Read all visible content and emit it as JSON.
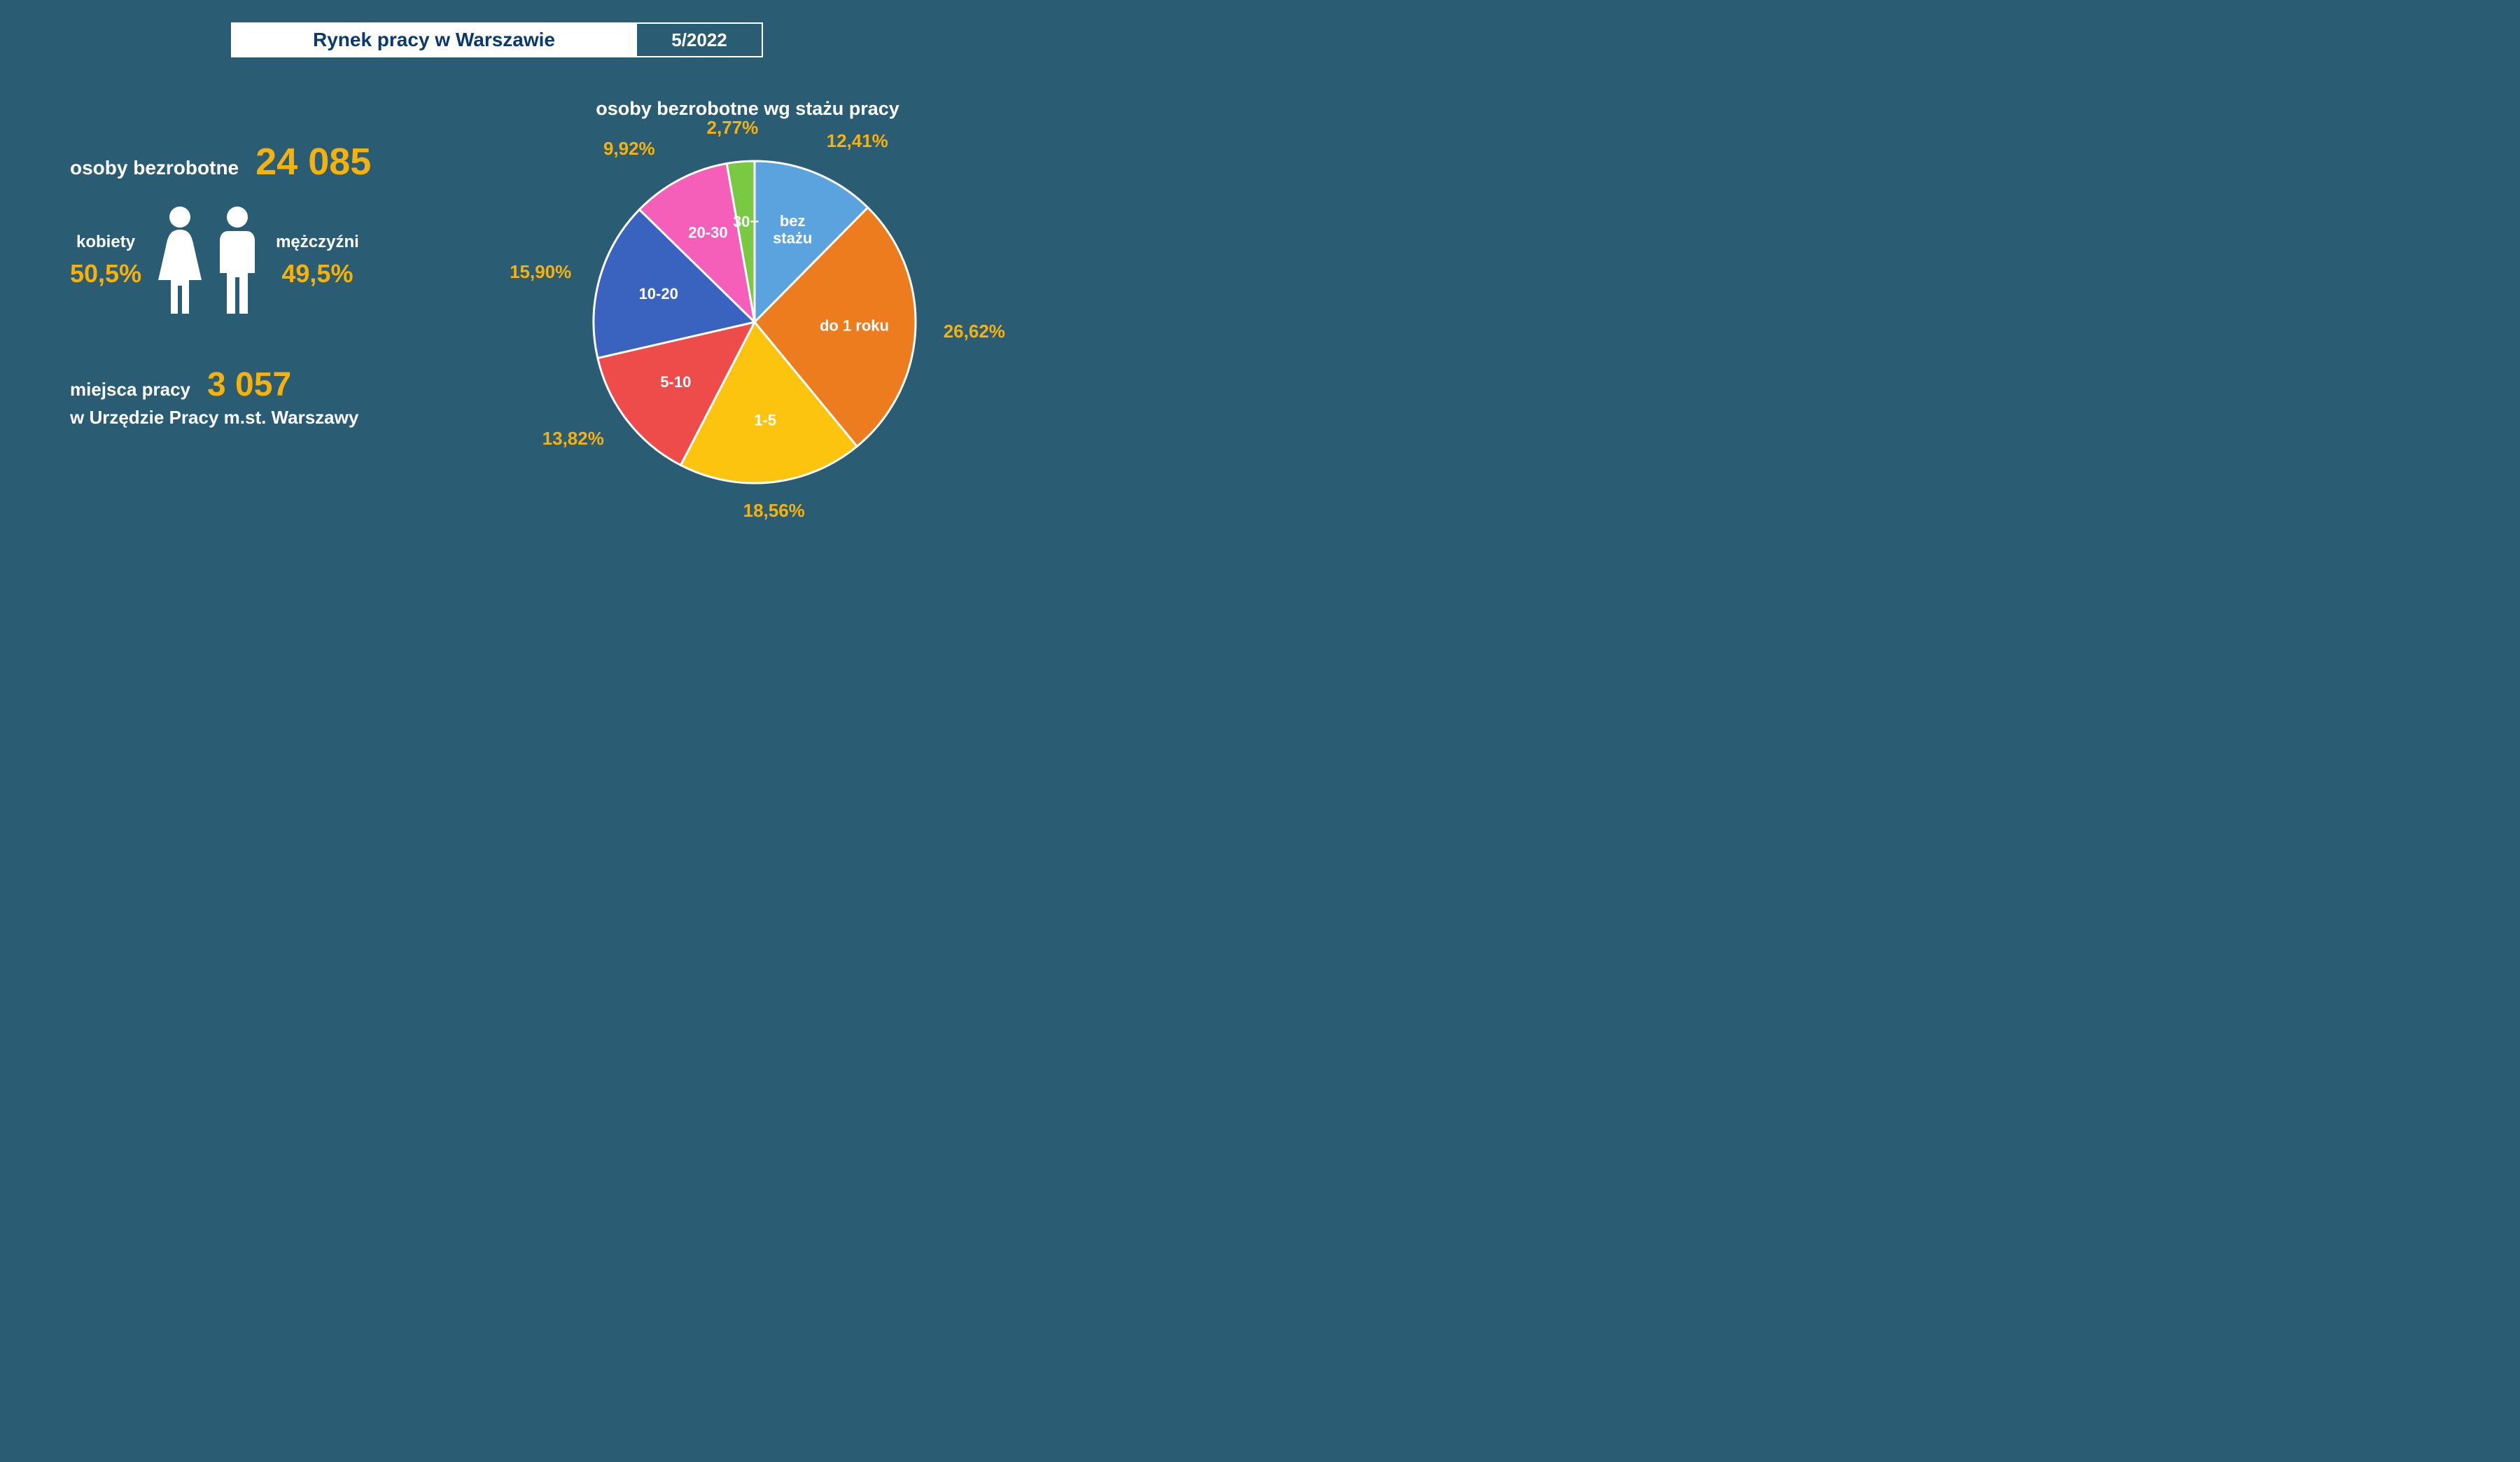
{
  "header": {
    "title": "Rynek pracy w Warszawie",
    "date": "5/2022"
  },
  "colors": {
    "background": "#2a5c74",
    "accent": "#f6b20c",
    "text_light": "#ffffff",
    "title_dark": "#0a3a6b"
  },
  "typography": {
    "font_family": "Arial",
    "title_size_pt": 28,
    "label_size_pt": 24,
    "big_number_size_pt": 54,
    "pct_size_pt": 36
  },
  "left": {
    "unemployed_label": "osoby bezrobotne",
    "unemployed_value": "24 085",
    "women_label": "kobiety",
    "women_pct": "50,5%",
    "men_label": "mężczyźni",
    "men_pct": "49,5%",
    "jobs_label": "miejsca pracy",
    "jobs_value": "3 057",
    "jobs_sub": "w Urzędzie Pracy m.st. Warszawy",
    "icon_color": "#ffffff"
  },
  "pie": {
    "title": "osoby bezrobotne wg stażu pracy",
    "type": "pie",
    "radius": 230,
    "stroke": "#ffffff",
    "stroke_width": 3,
    "start_angle_deg": 0,
    "slice_label_color": "#ffffff",
    "slice_label_fontsize": 22,
    "pct_label_color": "#f6b20c",
    "pct_label_fontsize": 26,
    "slices": [
      {
        "label": "bez stażu",
        "value": 12.41,
        "pct": "12,41%",
        "color": "#5aa3de"
      },
      {
        "label": "do 1 roku",
        "value": 26.62,
        "pct": "26,62%",
        "color": "#ec7c1d"
      },
      {
        "label": "1-5",
        "value": 18.56,
        "pct": "18,56%",
        "color": "#fcc40f"
      },
      {
        "label": "5-10",
        "value": 13.82,
        "pct": "13,82%",
        "color": "#ee4b4b"
      },
      {
        "label": "10-20",
        "value": 15.9,
        "pct": "15,90%",
        "color": "#3a63c0"
      },
      {
        "label": "20-30",
        "value": 9.92,
        "pct": "9,92%",
        "color": "#f65fb9"
      },
      {
        "label": "30+",
        "value": 2.77,
        "pct": "2,77%",
        "color": "#7ac943"
      }
    ]
  }
}
